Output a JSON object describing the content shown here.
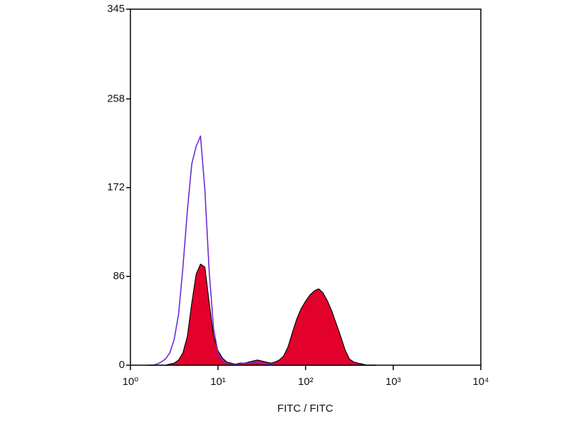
{
  "chart_data": {
    "type": "histogram",
    "xlabel": "FITC / FITC",
    "log_x": true,
    "xlim": [
      1,
      10000
    ],
    "xticks": [
      {
        "value": 1,
        "label": "10⁰"
      },
      {
        "value": 10,
        "label": "10¹"
      },
      {
        "value": 100,
        "label": "10²"
      },
      {
        "value": 1000,
        "label": "10³"
      },
      {
        "value": 10000,
        "label": "10⁴"
      }
    ],
    "ylim": [
      0,
      345
    ],
    "yticks": [
      0,
      86,
      172,
      258,
      345
    ],
    "x": [
      1.58,
      1.78,
      2.0,
      2.24,
      2.51,
      2.82,
      3.16,
      3.55,
      3.98,
      4.47,
      5.01,
      5.62,
      6.31,
      7.08,
      7.94,
      8.91,
      10,
      11.2,
      12.6,
      14.1,
      15.8,
      17.8,
      20,
      22.4,
      25.1,
      28.2,
      31.6,
      35.5,
      39.8,
      44.7,
      50.1,
      56.2,
      63.1,
      70.8,
      79.4,
      89.1,
      100,
      112,
      126,
      141,
      158,
      178,
      200,
      224,
      251,
      282,
      316,
      355,
      398,
      447,
      501,
      562,
      631
    ],
    "series": [
      {
        "color": "#e3002b",
        "edgecolor": "#000000",
        "filled": true,
        "values": [
          0,
          0,
          0,
          0,
          0,
          1,
          2,
          5,
          12,
          28,
          60,
          88,
          98,
          95,
          60,
          28,
          14,
          7,
          3,
          2,
          1,
          2,
          2,
          3,
          4,
          5,
          4,
          3,
          2,
          3,
          5,
          9,
          18,
          32,
          45,
          55,
          62,
          68,
          72,
          74,
          70,
          62,
          52,
          40,
          28,
          15,
          6,
          3,
          2,
          1,
          0,
          0,
          0
        ]
      },
      {
        "color": "#6a2cd6",
        "filled": false,
        "values": [
          0,
          0,
          1,
          3,
          6,
          12,
          25,
          50,
          95,
          150,
          195,
          212,
          222,
          170,
          90,
          35,
          12,
          4,
          2,
          1,
          1,
          1,
          2,
          2,
          3,
          3,
          2,
          1,
          1,
          0,
          0,
          0,
          0,
          0,
          0,
          0,
          0,
          0,
          0,
          0,
          0,
          0,
          0,
          0,
          0,
          0,
          0,
          0,
          0,
          0,
          0,
          0,
          0
        ]
      }
    ]
  }
}
